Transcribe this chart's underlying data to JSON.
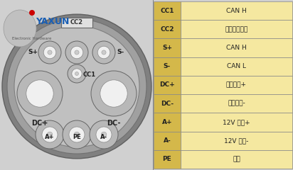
{
  "bg_color": "#d0d0d0",
  "table_data": [
    [
      "CC1",
      "CAN H"
    ],
    [
      "CC2",
      "充电连接确认"
    ],
    [
      "S+",
      "CAN H"
    ],
    [
      "S-",
      "CAN L"
    ],
    [
      "DC+",
      "充电输入+"
    ],
    [
      "DC-",
      "充电输入-"
    ],
    [
      "A+",
      "12V 电源+"
    ],
    [
      "A-",
      "12V 电源-"
    ],
    [
      "PE",
      "车地"
    ]
  ],
  "col1_bg": "#d4b84a",
  "col2_bg": "#f5e8a0",
  "border_c": "#888888",
  "logo_blue": "#1a5fb4",
  "logo_sub": "#555555",
  "connector_outer1": "#888888",
  "connector_outer2": "#aaaaaa",
  "connector_body": "#c8c8c8",
  "pin_outer": "#b0b0b0",
  "pin_inner": "#ffffff",
  "figsize": [
    4.12,
    2.4
  ],
  "dpi": 100
}
